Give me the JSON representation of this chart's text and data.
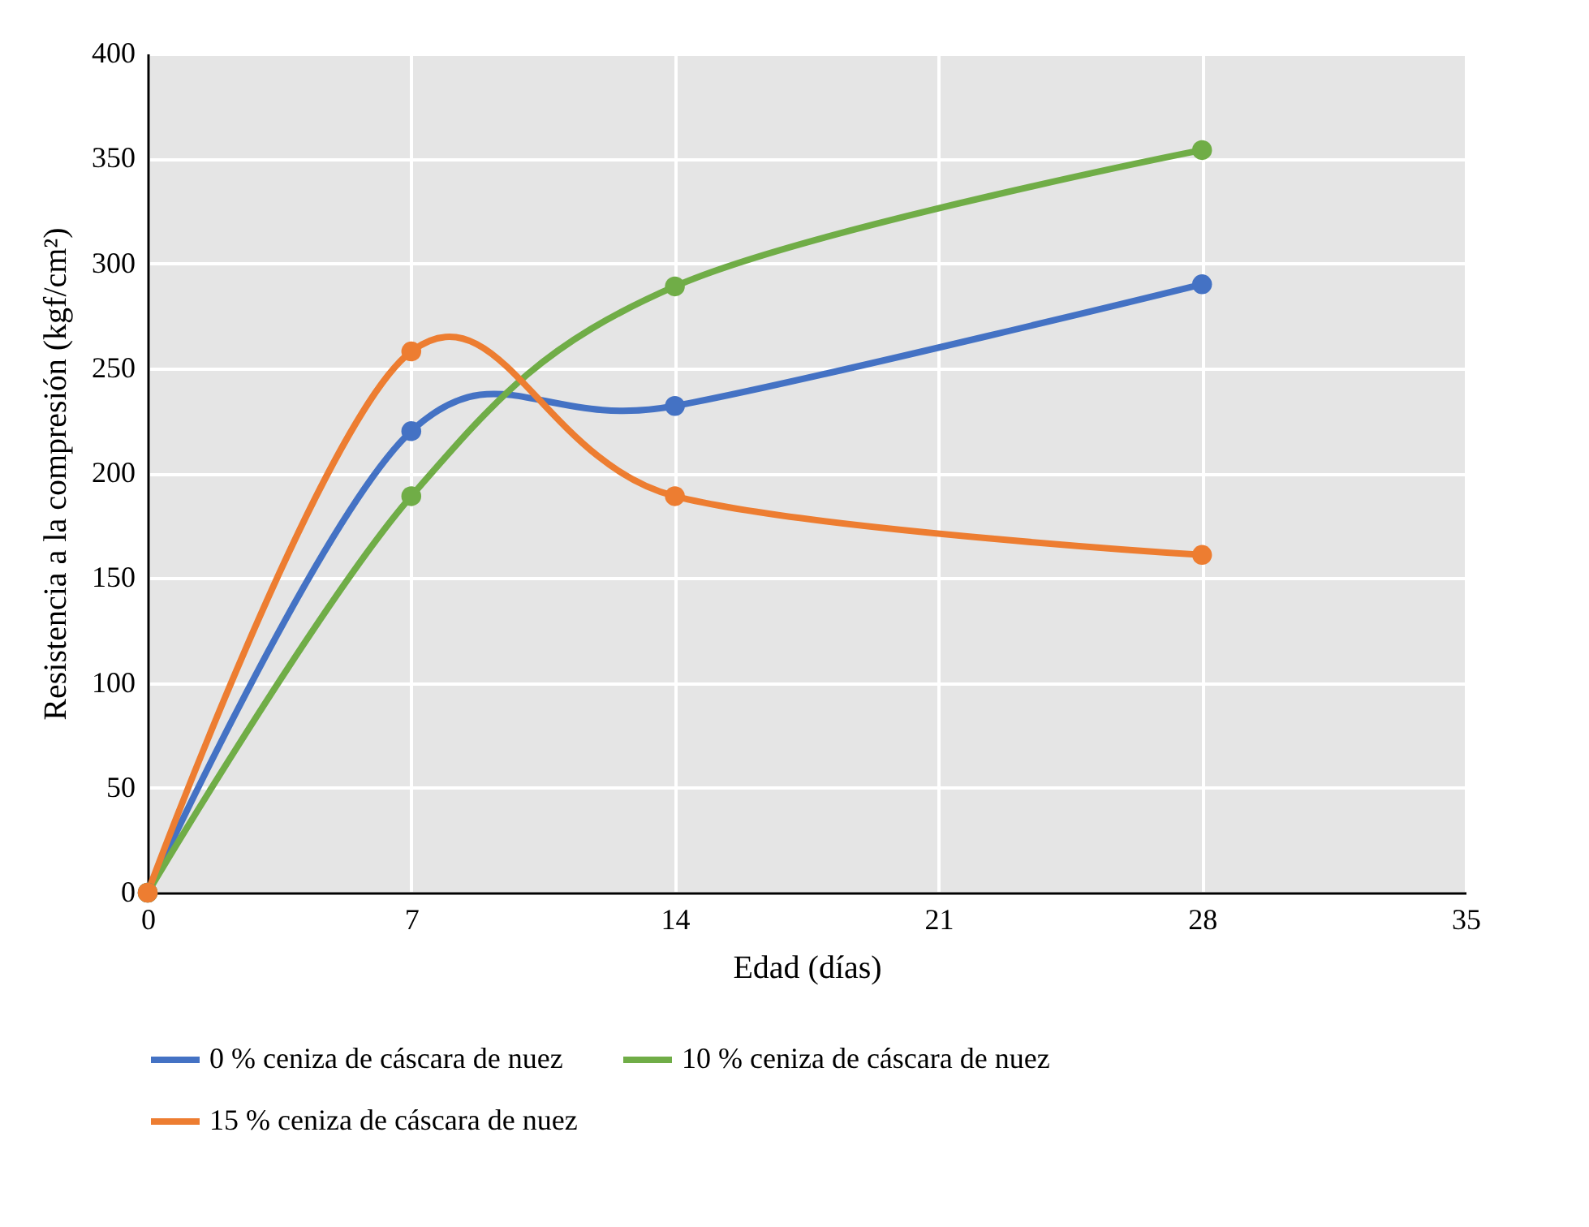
{
  "chart_data": {
    "type": "line",
    "xlabel": "Edad (días)",
    "ylabel": "Resistencia a la compresión (kgf/cm²)",
    "x": [
      0,
      7,
      14,
      28
    ],
    "series": [
      {
        "name": "0 % ceniza de cáscara de nuez",
        "color": "#4472c4",
        "values": [
          0,
          220,
          232,
          290
        ]
      },
      {
        "name": "10 % ceniza de cáscara de nuez",
        "color": "#70ad47",
        "values": [
          0,
          189,
          289,
          354
        ]
      },
      {
        "name": "15 % ceniza de cáscara de nuez",
        "color": "#ed7d31",
        "values": [
          0,
          258,
          189,
          161
        ]
      }
    ],
    "xlim": [
      0,
      35
    ],
    "xticks": [
      0,
      7,
      14,
      21,
      28,
      35
    ],
    "ylim": [
      0,
      400
    ],
    "yticks": [
      0,
      50,
      100,
      150,
      200,
      250,
      300,
      350,
      400
    ],
    "grid": true,
    "legend": "bottom",
    "marker": "circle",
    "line_style": "solid"
  }
}
